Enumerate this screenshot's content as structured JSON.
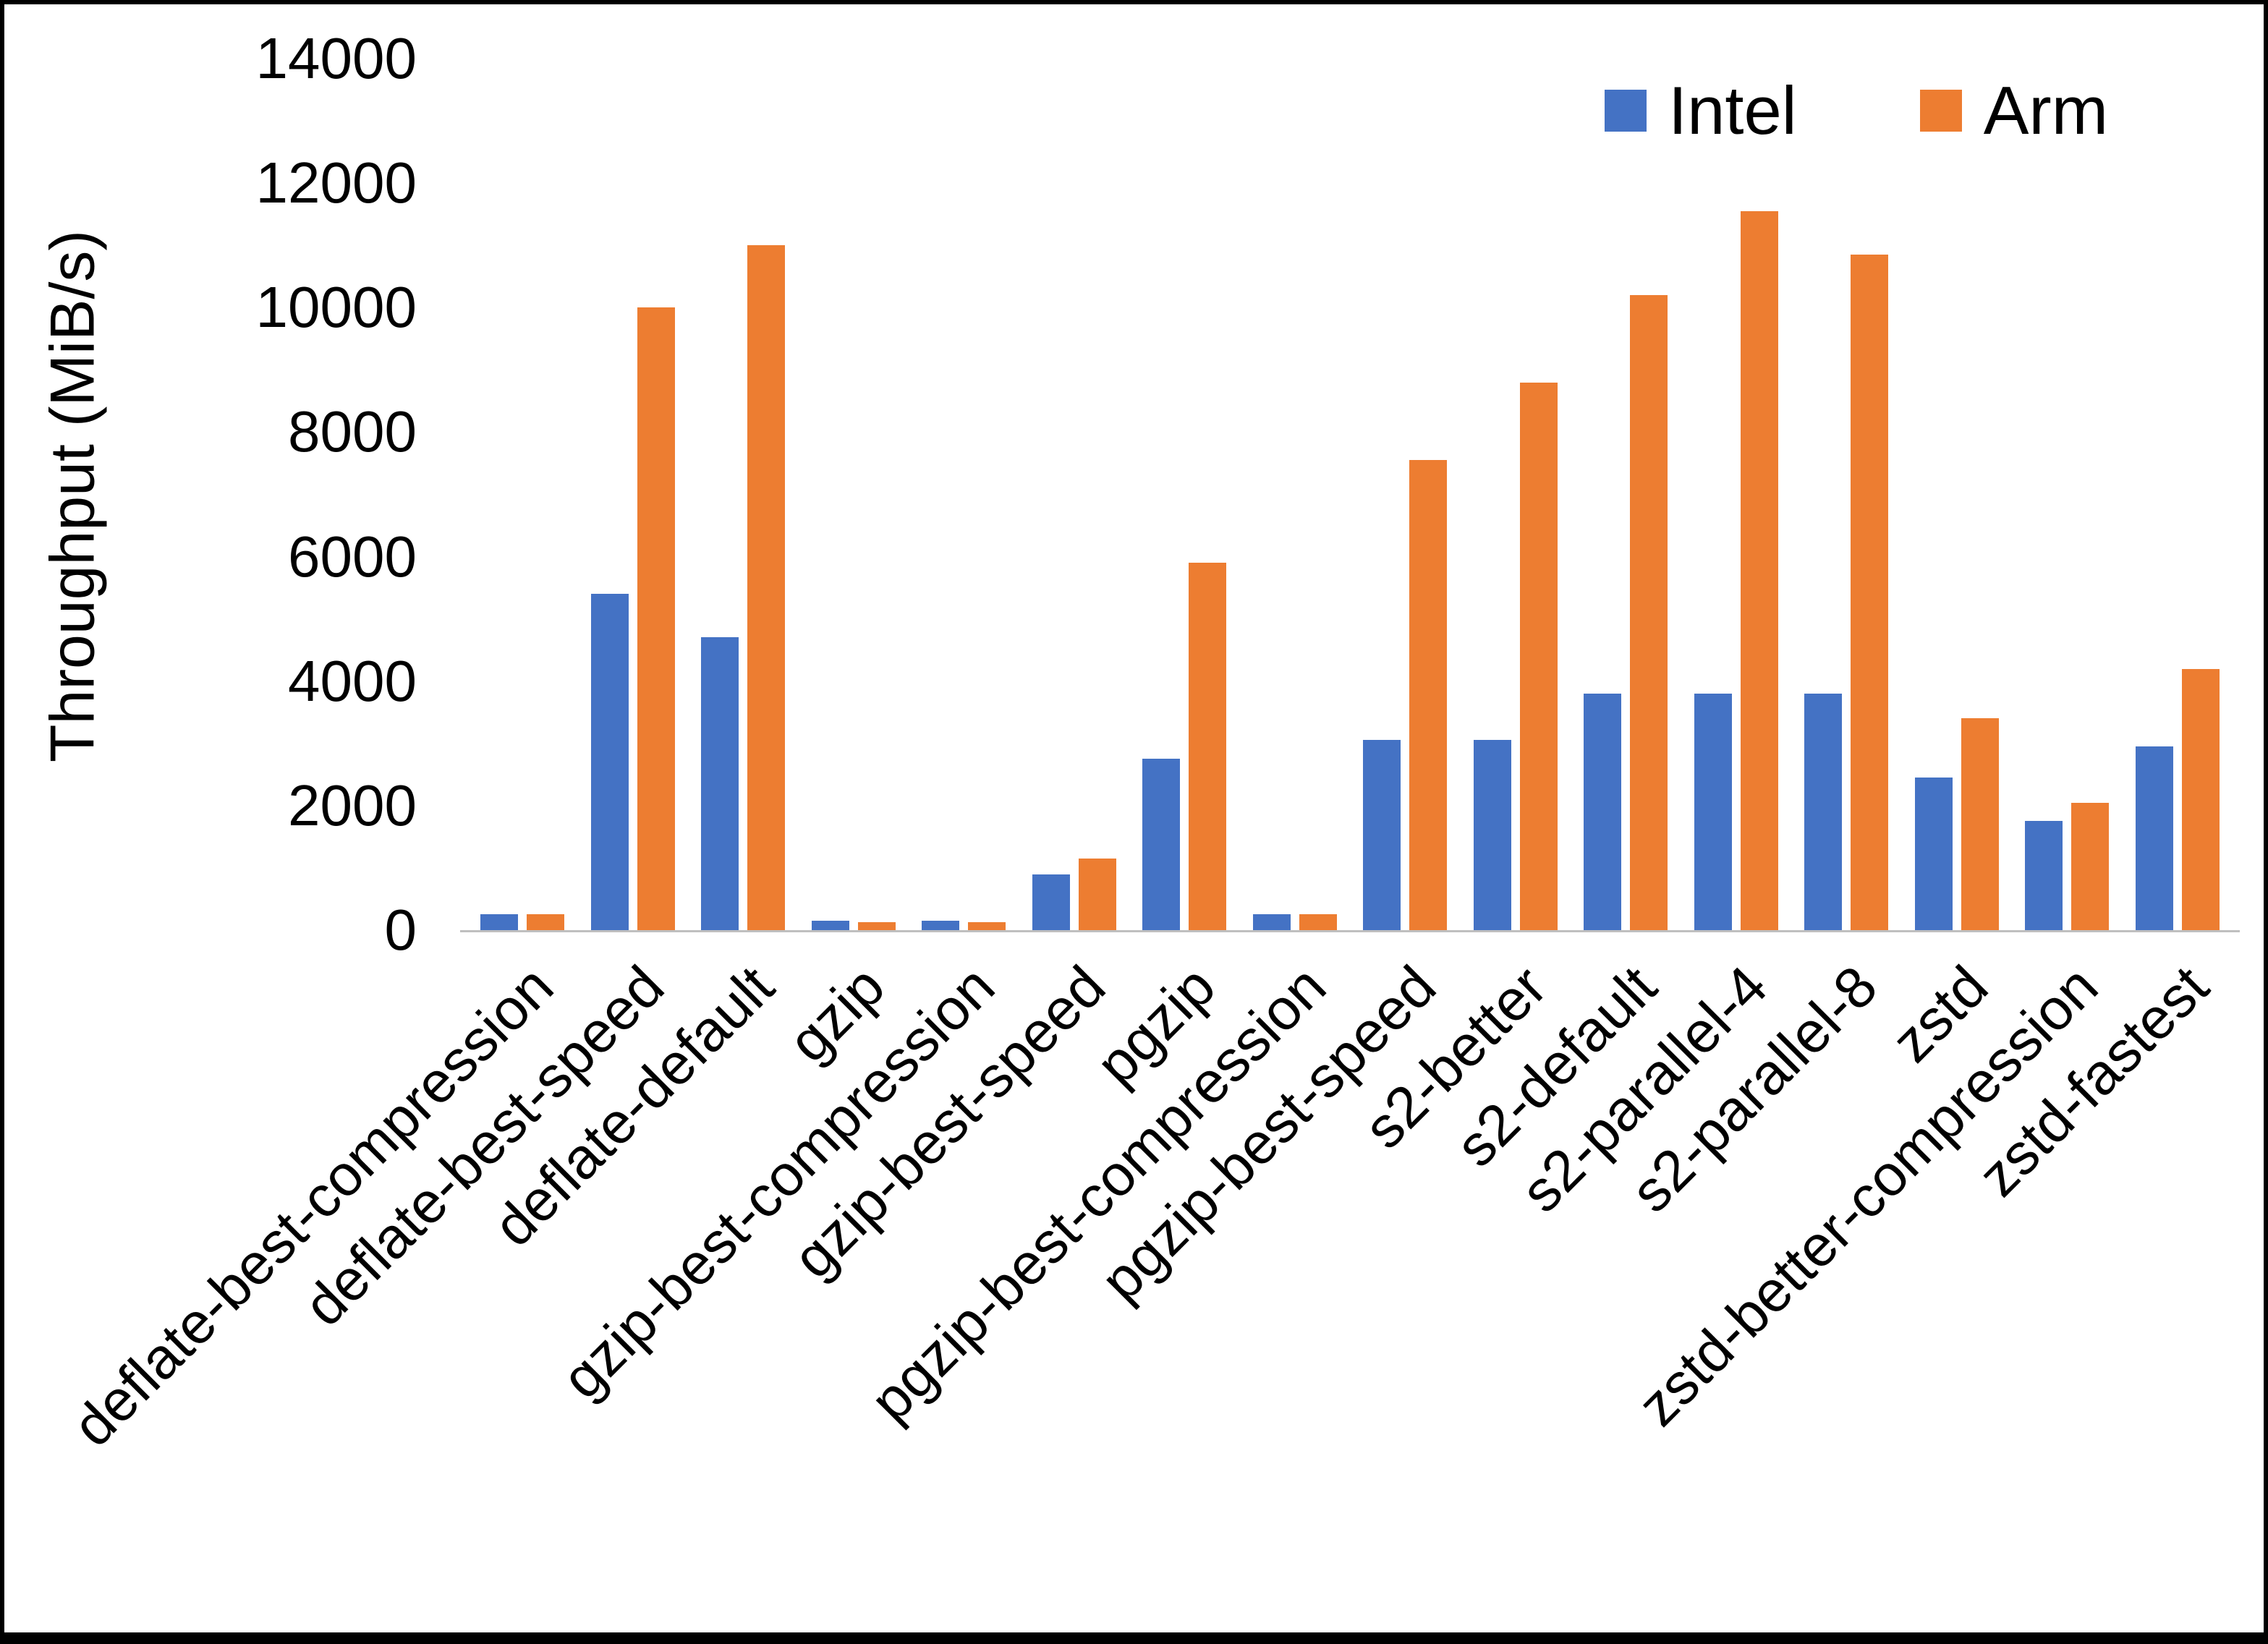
{
  "chart_data": {
    "type": "bar",
    "title": "",
    "xlabel": "",
    "ylabel": "Throughput (MiB/s)",
    "ylim": [
      0,
      14000
    ],
    "ytick_step": 2000,
    "grid": false,
    "legend_position": "top-right",
    "background_color": "#ffffff",
    "axis_line_color": "#bfbfbf",
    "categories": [
      "deflate-best-compression",
      "deflate-best-speed",
      "deflate-default",
      "gzip",
      "gzip-best-compression",
      "gzip-best-speed",
      "pgzip",
      "pgzip-best-compression",
      "pgzip-best-speed",
      "s2-better",
      "s2-default",
      "s2-parallel-4",
      "s2-parallel-8",
      "zstd",
      "zstd-better-compression",
      "zstd-fastest"
    ],
    "series": [
      {
        "name": "Intel",
        "color": "#4472C4",
        "values": [
          250,
          5400,
          4700,
          150,
          150,
          900,
          2750,
          250,
          3050,
          3050,
          3800,
          3800,
          3800,
          2450,
          1750,
          2950
        ]
      },
      {
        "name": "Arm",
        "color": "#ED7D31",
        "values": [
          250,
          10000,
          11000,
          130,
          130,
          1150,
          5900,
          250,
          7550,
          8800,
          10200,
          11550,
          10850,
          3400,
          2050,
          4200
        ]
      }
    ]
  }
}
